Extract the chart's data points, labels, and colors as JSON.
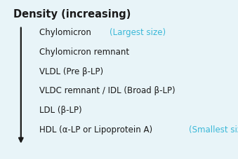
{
  "title": "Density (increasing)",
  "title_fontsize": 10.5,
  "bg_color": "#e8f4f8",
  "border_color": "#aac8d8",
  "text_color": "#1a1a1a",
  "highlight_color": "#3ab8d8",
  "items": [
    {
      "black": "Chylomicron ",
      "blue": "(Largest size)"
    },
    {
      "black": "Chylomicron remnant",
      "blue": ""
    },
    {
      "black": "VLDL (Pre β-LP)",
      "blue": ""
    },
    {
      "black": "VLDC remnant / IDL (Broad β-LP)",
      "blue": ""
    },
    {
      "black": "LDL (β-LP)",
      "blue": ""
    },
    {
      "black": "HDL (α-LP or Lipoprotein A) ",
      "blue": "(Smallest size)"
    }
  ],
  "item_fontsize": 8.5,
  "figwidth": 3.39,
  "figheight": 2.28,
  "dpi": 100
}
